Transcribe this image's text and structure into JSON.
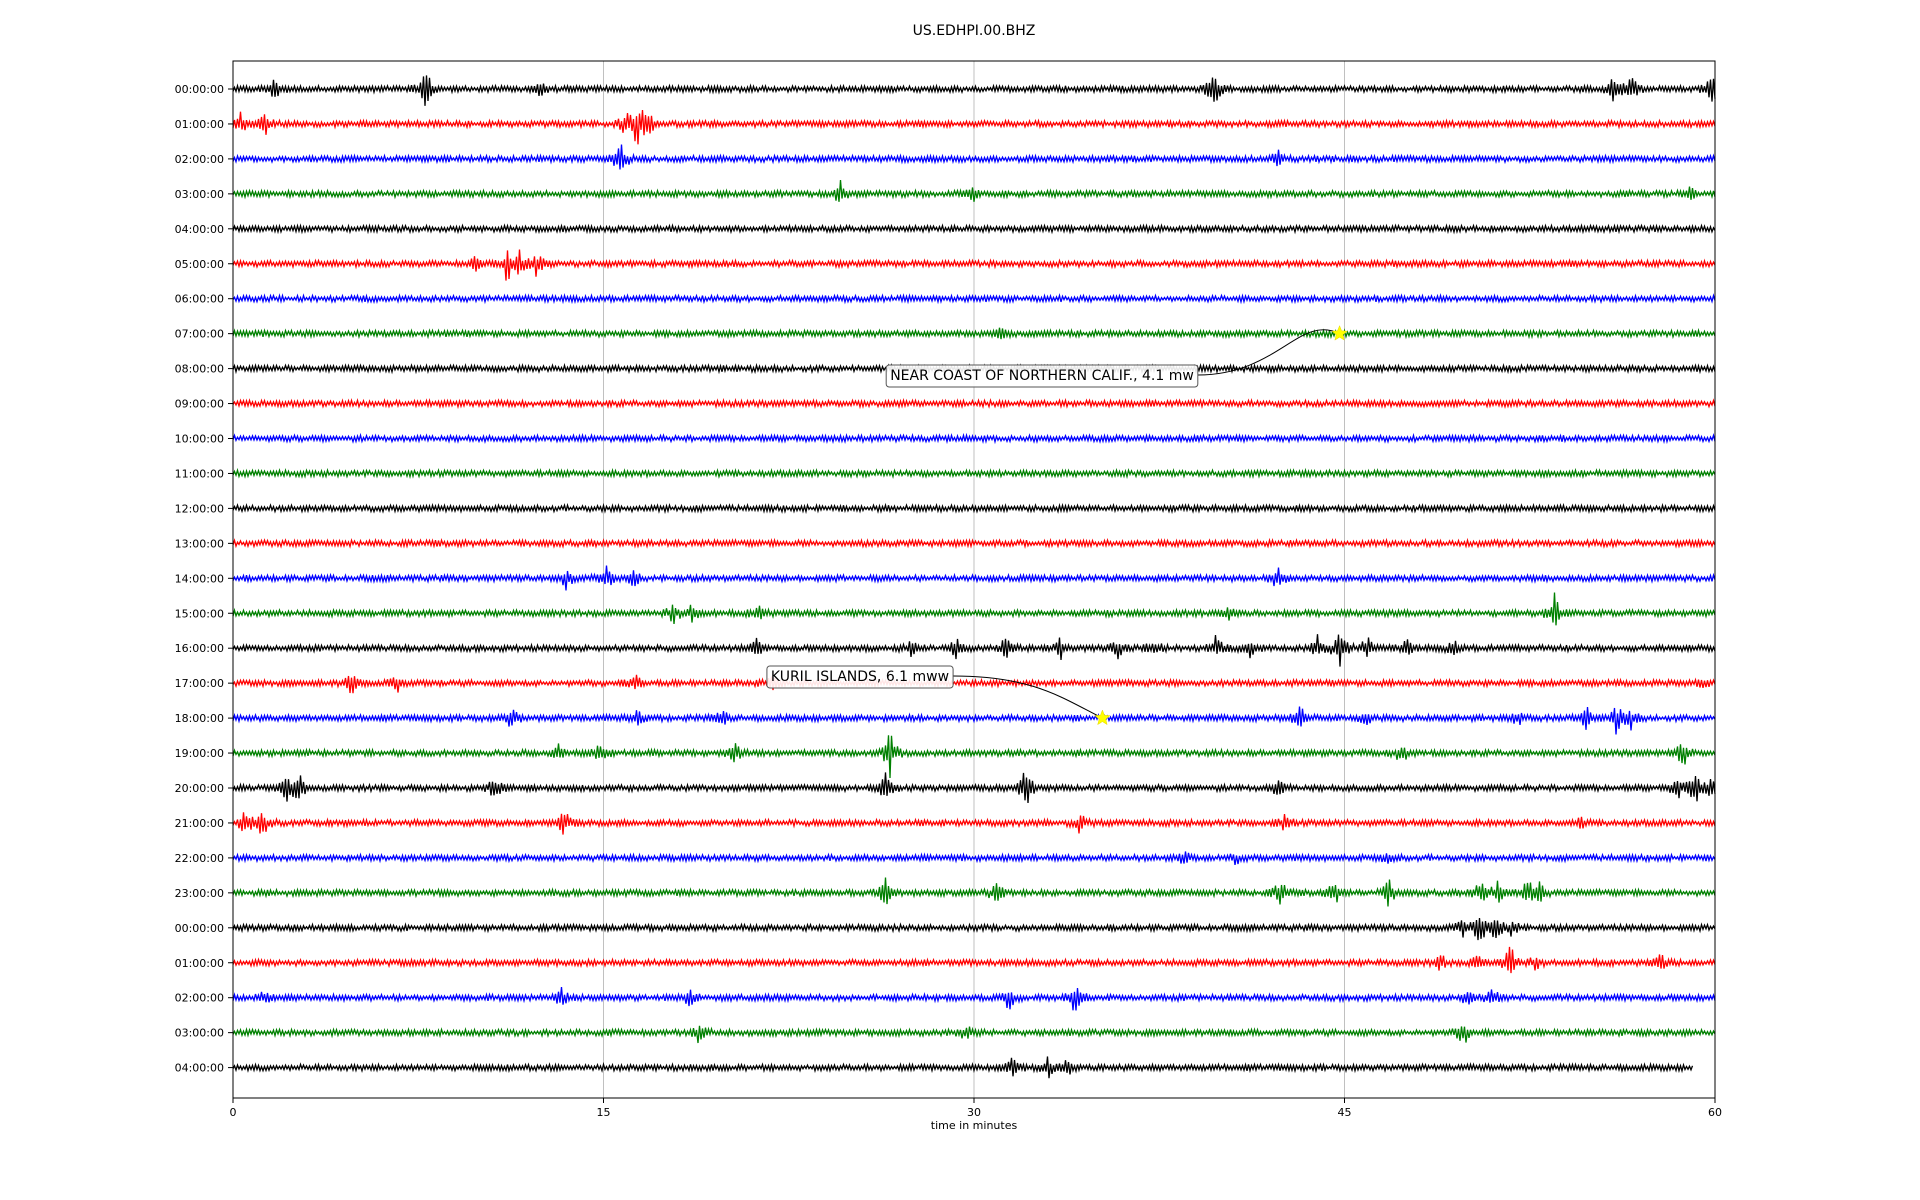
{
  "chart_data": {
    "type": "line",
    "title": "US.EDHPI.00.BHZ",
    "xlabel": "time in minutes",
    "ylabel": "",
    "xlim": [
      0,
      60
    ],
    "x_ticks": [
      "0",
      "15",
      "30",
      "45",
      "60"
    ],
    "x_tick_values": [
      0,
      15,
      30,
      45,
      60
    ],
    "grid": "vertical lines at 15, 30, 45",
    "line_colors": [
      "#000000",
      "#ff0000",
      "#0000ff",
      "#008000"
    ],
    "rows": [
      {
        "label": "00:00:00",
        "bursts": [
          {
            "t": 1.7,
            "a": 10
          },
          {
            "t": 7.8,
            "a": 22
          },
          {
            "t": 12.4,
            "a": 7
          },
          {
            "t": 39.7,
            "a": 22
          },
          {
            "t": 55.9,
            "a": 12
          },
          {
            "t": 56.6,
            "a": 14
          },
          {
            "t": 59.9,
            "a": 18
          }
        ]
      },
      {
        "label": "01:00:00",
        "bursts": [
          {
            "t": 0.3,
            "a": 10
          },
          {
            "t": 1.3,
            "a": 12
          },
          {
            "t": 15.9,
            "a": 14
          },
          {
            "t": 16.4,
            "a": 28
          },
          {
            "t": 16.9,
            "a": 12
          }
        ]
      },
      {
        "label": "02:00:00",
        "bursts": [
          {
            "t": 15.7,
            "a": 22
          },
          {
            "t": 42.3,
            "a": 10
          }
        ]
      },
      {
        "label": "03:00:00",
        "bursts": [
          {
            "t": 24.6,
            "a": 12
          },
          {
            "t": 30.0,
            "a": 6
          },
          {
            "t": 59.0,
            "a": 5
          }
        ]
      },
      {
        "label": "04:00:00",
        "bursts": []
      },
      {
        "label": "05:00:00",
        "bursts": [
          {
            "t": 9.8,
            "a": 7
          },
          {
            "t": 11.1,
            "a": 18
          },
          {
            "t": 11.6,
            "a": 12
          },
          {
            "t": 12.3,
            "a": 12
          }
        ]
      },
      {
        "label": "06:00:00",
        "bursts": []
      },
      {
        "label": "07:00:00",
        "bursts": [
          {
            "t": 31.0,
            "a": 5
          }
        ]
      },
      {
        "label": "08:00:00",
        "bursts": []
      },
      {
        "label": "09:00:00",
        "bursts": []
      },
      {
        "label": "10:00:00",
        "bursts": []
      },
      {
        "label": "11:00:00",
        "bursts": []
      },
      {
        "label": "12:00:00",
        "bursts": []
      },
      {
        "label": "13:00:00",
        "bursts": []
      },
      {
        "label": "14:00:00",
        "bursts": [
          {
            "t": 13.5,
            "a": 10
          },
          {
            "t": 15.1,
            "a": 14
          },
          {
            "t": 16.2,
            "a": 10
          },
          {
            "t": 42.3,
            "a": 12
          }
        ]
      },
      {
        "label": "15:00:00",
        "bursts": [
          {
            "t": 17.8,
            "a": 12
          },
          {
            "t": 18.6,
            "a": 10
          },
          {
            "t": 21.3,
            "a": 9
          },
          {
            "t": 40.3,
            "a": 6
          },
          {
            "t": 53.5,
            "a": 18
          }
        ]
      },
      {
        "label": "16:00:00",
        "bursts": [
          {
            "t": 21.2,
            "a": 8
          },
          {
            "t": 27.5,
            "a": 8
          },
          {
            "t": 29.3,
            "a": 10
          },
          {
            "t": 31.3,
            "a": 12
          },
          {
            "t": 33.5,
            "a": 10
          },
          {
            "t": 35.8,
            "a": 10
          },
          {
            "t": 37.3,
            "a": 10
          },
          {
            "t": 39.8,
            "a": 12
          },
          {
            "t": 41.2,
            "a": 10
          },
          {
            "t": 43.9,
            "a": 12
          },
          {
            "t": 44.8,
            "a": 22
          },
          {
            "t": 45.9,
            "a": 12
          },
          {
            "t": 47.5,
            "a": 8
          },
          {
            "t": 49.4,
            "a": 8
          }
        ]
      },
      {
        "label": "17:00:00",
        "bursts": [
          {
            "t": 4.8,
            "a": 12
          },
          {
            "t": 6.7,
            "a": 10
          },
          {
            "t": 16.3,
            "a": 10
          },
          {
            "t": 21.8,
            "a": 8
          },
          {
            "t": 59.5,
            "a": 5
          }
        ]
      },
      {
        "label": "18:00:00",
        "bursts": [
          {
            "t": 11.3,
            "a": 12
          },
          {
            "t": 16.4,
            "a": 8
          },
          {
            "t": 19.8,
            "a": 8
          },
          {
            "t": 43.2,
            "a": 12
          },
          {
            "t": 45.9,
            "a": 7
          },
          {
            "t": 52.0,
            "a": 8
          },
          {
            "t": 54.8,
            "a": 10
          },
          {
            "t": 56.0,
            "a": 14
          },
          {
            "t": 56.6,
            "a": 10
          }
        ]
      },
      {
        "label": "19:00:00",
        "bursts": [
          {
            "t": 13.2,
            "a": 10
          },
          {
            "t": 14.9,
            "a": 10
          },
          {
            "t": 20.3,
            "a": 10
          },
          {
            "t": 26.6,
            "a": 22
          },
          {
            "t": 47.3,
            "a": 12
          },
          {
            "t": 58.7,
            "a": 14
          }
        ]
      },
      {
        "label": "20:00:00",
        "bursts": [
          {
            "t": 2.2,
            "a": 14
          },
          {
            "t": 2.7,
            "a": 14
          },
          {
            "t": 10.6,
            "a": 12
          },
          {
            "t": 26.4,
            "a": 14
          },
          {
            "t": 32.1,
            "a": 22
          },
          {
            "t": 42.3,
            "a": 10
          },
          {
            "t": 58.5,
            "a": 12
          },
          {
            "t": 59.2,
            "a": 16
          },
          {
            "t": 59.9,
            "a": 10
          }
        ]
      },
      {
        "label": "21:00:00",
        "bursts": [
          {
            "t": 0.5,
            "a": 12
          },
          {
            "t": 1.2,
            "a": 14
          },
          {
            "t": 13.4,
            "a": 14
          },
          {
            "t": 34.3,
            "a": 10
          },
          {
            "t": 42.6,
            "a": 8
          },
          {
            "t": 54.5,
            "a": 6
          }
        ]
      },
      {
        "label": "22:00:00",
        "bursts": [
          {
            "t": 38.5,
            "a": 7
          },
          {
            "t": 40.6,
            "a": 5
          },
          {
            "t": 46.8,
            "a": 5
          }
        ]
      },
      {
        "label": "23:00:00",
        "bursts": [
          {
            "t": 26.4,
            "a": 14
          },
          {
            "t": 30.9,
            "a": 12
          },
          {
            "t": 42.4,
            "a": 14
          },
          {
            "t": 44.6,
            "a": 12
          },
          {
            "t": 46.8,
            "a": 14
          },
          {
            "t": 50.5,
            "a": 14
          },
          {
            "t": 51.2,
            "a": 10
          },
          {
            "t": 52.4,
            "a": 14
          },
          {
            "t": 52.9,
            "a": 10
          }
        ]
      },
      {
        "label": "00:00:00",
        "bursts": [
          {
            "t": 49.8,
            "a": 10
          },
          {
            "t": 50.5,
            "a": 20
          },
          {
            "t": 51.1,
            "a": 14
          },
          {
            "t": 51.8,
            "a": 10
          }
        ]
      },
      {
        "label": "01:00:00",
        "bursts": [
          {
            "t": 48.9,
            "a": 8
          },
          {
            "t": 50.4,
            "a": 7
          },
          {
            "t": 51.7,
            "a": 22
          },
          {
            "t": 52.7,
            "a": 8
          },
          {
            "t": 57.8,
            "a": 8
          }
        ]
      },
      {
        "label": "02:00:00",
        "bursts": [
          {
            "t": 1.3,
            "a": 8
          },
          {
            "t": 13.3,
            "a": 8
          },
          {
            "t": 18.5,
            "a": 8
          },
          {
            "t": 31.4,
            "a": 12
          },
          {
            "t": 34.1,
            "a": 18
          },
          {
            "t": 50.0,
            "a": 10
          },
          {
            "t": 51.0,
            "a": 10
          }
        ]
      },
      {
        "label": "03:00:00",
        "bursts": [
          {
            "t": 18.9,
            "a": 12
          },
          {
            "t": 29.7,
            "a": 8
          },
          {
            "t": 49.8,
            "a": 14
          }
        ]
      },
      {
        "label": "04:00:00",
        "bursts": [
          {
            "t": 31.6,
            "a": 12
          },
          {
            "t": 33.0,
            "a": 10
          },
          {
            "t": 33.8,
            "a": 8
          }
        ],
        "end": 59.1
      }
    ],
    "events": [
      {
        "label": "NEAR COAST OF NORTHERN CALIF., 4.1 mw",
        "row": 7,
        "t": 44.8
      },
      {
        "label": "KURIL ISLANDS, 6.1 mww",
        "row": 18,
        "t": 35.2
      }
    ]
  }
}
